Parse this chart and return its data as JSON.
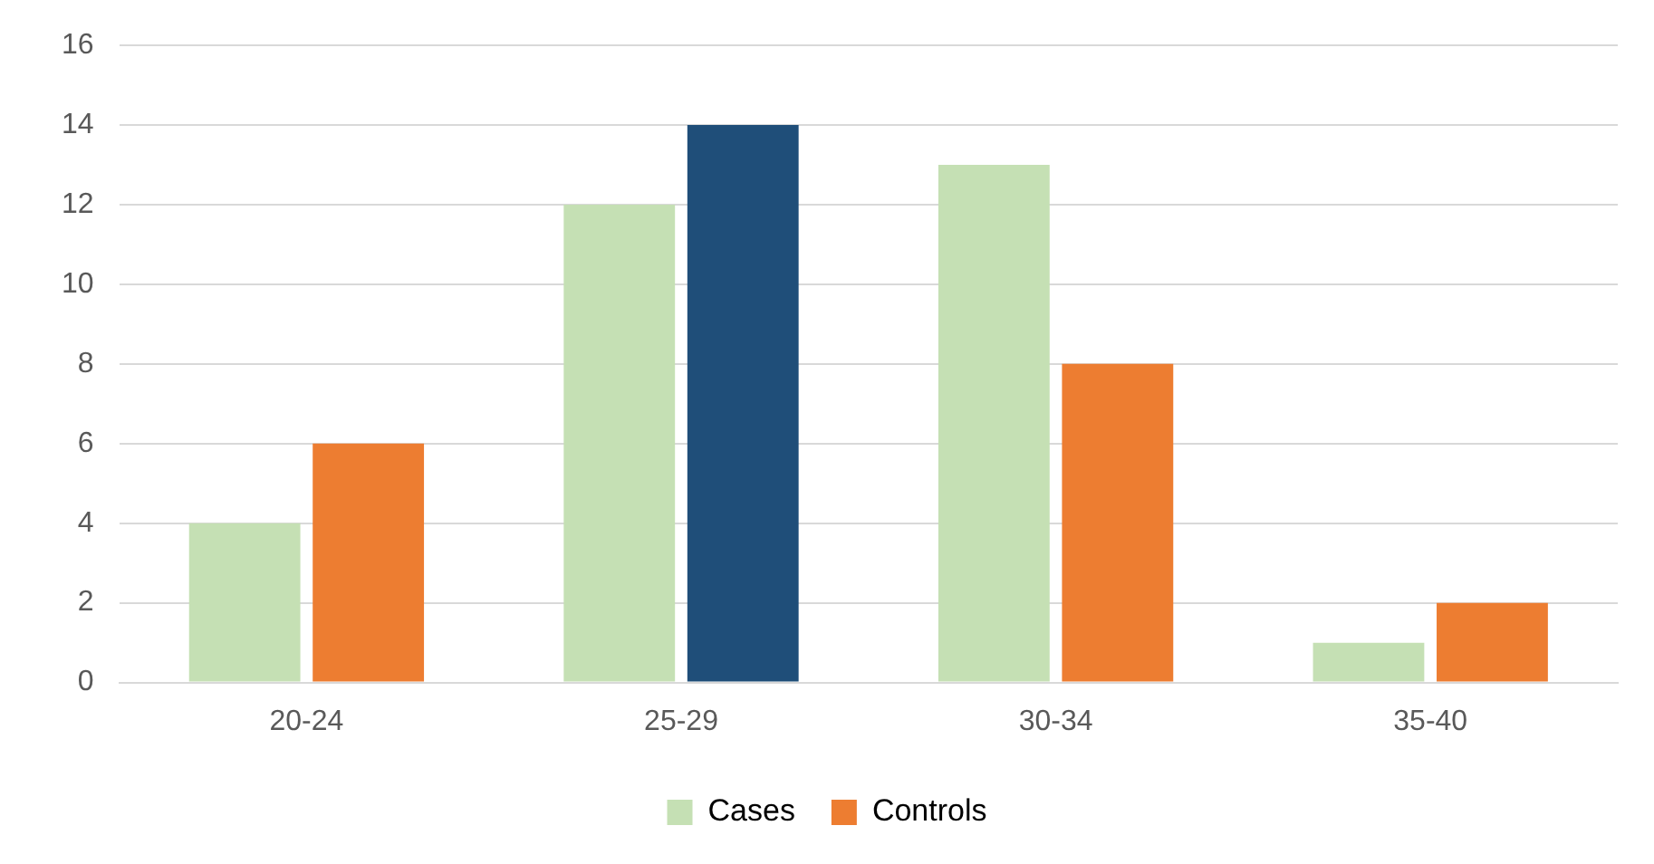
{
  "chart_data": {
    "type": "bar",
    "categories": [
      "20-24",
      "25-29",
      "30-34",
      "35-40"
    ],
    "series": [
      {
        "name": "Cases",
        "color": "#c5e0b4",
        "values": [
          4,
          12,
          13,
          1
        ]
      },
      {
        "name": "Controls",
        "color": "#ed7d31",
        "colors": [
          "#ed7d31",
          "#1f4e79",
          "#ed7d31",
          "#ed7d31"
        ],
        "values": [
          6,
          14,
          8,
          2
        ]
      }
    ],
    "ylim": [
      0,
      16
    ],
    "yticks": [
      0,
      2,
      4,
      6,
      8,
      10,
      12,
      14,
      16
    ],
    "grid": "y",
    "legend": "bottom"
  }
}
